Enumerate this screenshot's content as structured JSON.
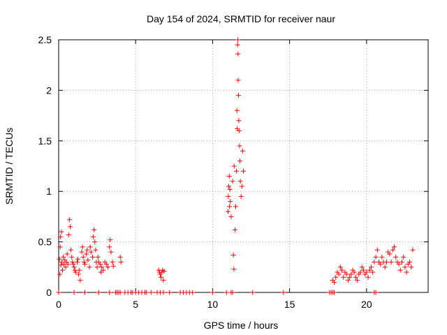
{
  "chart_data": {
    "type": "scatter",
    "title": "Day 154 of 2024, SRMTID for receiver naur",
    "xlabel": "GPS time / hours",
    "ylabel": "SRMTID / TECUs",
    "xlim": [
      0,
      24
    ],
    "ylim": [
      0,
      2.5
    ],
    "xticks": [
      0,
      5,
      10,
      15,
      20
    ],
    "xtick_labels": [
      "0",
      "5",
      "10",
      "15",
      "20"
    ],
    "yticks": [
      0,
      0.5,
      1,
      1.5,
      2,
      2.5
    ],
    "ytick_labels": [
      "0",
      "0.5",
      "1",
      "1.5",
      "2",
      "2.5"
    ],
    "grid": true,
    "marker": "+",
    "series": [
      {
        "name": "SRMTID",
        "color": "#ff0000",
        "points": [
          [
            0.05,
            0.33
          ],
          [
            0.08,
            0.18
          ],
          [
            0.1,
            0.45
          ],
          [
            0.12,
            0.55
          ],
          [
            0.15,
            0.27
          ],
          [
            0.18,
            0.6
          ],
          [
            0.2,
            0.3
          ],
          [
            0.25,
            0.22
          ],
          [
            0.3,
            0.35
          ],
          [
            0.35,
            0.28
          ],
          [
            0.4,
            0.32
          ],
          [
            0.45,
            0.25
          ],
          [
            0.5,
            0.3
          ],
          [
            0.55,
            0.38
          ],
          [
            0.6,
            0.28
          ],
          [
            0.65,
            0.57
          ],
          [
            0.7,
            0.72
          ],
          [
            0.75,
            0.65
          ],
          [
            0.8,
            0.42
          ],
          [
            0.85,
            0.35
          ],
          [
            0.9,
            0.3
          ],
          [
            0.95,
            0.28
          ],
          [
            1.0,
            0.25
          ],
          [
            1.05,
            0.22
          ],
          [
            1.1,
            0.2
          ],
          [
            1.2,
            0.3
          ],
          [
            1.25,
            0.33
          ],
          [
            1.3,
            0.18
          ],
          [
            1.35,
            0.22
          ],
          [
            1.4,
            0.12
          ],
          [
            1.5,
            0.4
          ],
          [
            1.55,
            0.45
          ],
          [
            1.6,
            0.35
          ],
          [
            1.65,
            0.3
          ],
          [
            1.7,
            0.28
          ],
          [
            1.8,
            0.38
          ],
          [
            1.85,
            0.42
          ],
          [
            1.9,
            0.32
          ],
          [
            2.0,
            0.25
          ],
          [
            2.05,
            0.45
          ],
          [
            2.1,
            0.4
          ],
          [
            2.2,
            0.35
          ],
          [
            2.25,
            0.55
          ],
          [
            2.3,
            0.62
          ],
          [
            2.35,
            0.5
          ],
          [
            2.4,
            0.42
          ],
          [
            2.45,
            0.3
          ],
          [
            2.5,
            0.25
          ],
          [
            2.55,
            0.35
          ],
          [
            2.6,
            0.3
          ],
          [
            2.7,
            0.28
          ],
          [
            2.75,
            0.2
          ],
          [
            2.8,
            0.25
          ],
          [
            2.9,
            0.22
          ],
          [
            3.0,
            0.3
          ],
          [
            3.1,
            0.28
          ],
          [
            3.2,
            0.25
          ],
          [
            3.3,
            0.45
          ],
          [
            3.35,
            0.52
          ],
          [
            3.4,
            0.4
          ],
          [
            3.5,
            0.3
          ],
          [
            3.55,
            0.26
          ],
          [
            4.0,
            0.35
          ],
          [
            4.05,
            0.3
          ],
          [
            0.0,
            0.0
          ],
          [
            1.0,
            0.0
          ],
          [
            1.7,
            0.0
          ],
          [
            2.6,
            0.0
          ],
          [
            3.3,
            0.0
          ],
          [
            3.7,
            0.0
          ],
          [
            3.8,
            0.0
          ],
          [
            3.9,
            0.0
          ],
          [
            4.0,
            0.0
          ],
          [
            4.3,
            0.0
          ],
          [
            4.5,
            0.0
          ],
          [
            4.7,
            0.0
          ],
          [
            4.8,
            0.0
          ],
          [
            5.0,
            0.0
          ],
          [
            5.2,
            0.0
          ],
          [
            5.4,
            0.0
          ],
          [
            5.6,
            0.0
          ],
          [
            5.7,
            0.0
          ],
          [
            6.0,
            0.0
          ],
          [
            6.4,
            0.0
          ],
          [
            6.6,
            0.0
          ],
          [
            6.8,
            0.0
          ],
          [
            7.2,
            0.0
          ],
          [
            7.9,
            0.0
          ],
          [
            8.1,
            0.0
          ],
          [
            8.3,
            0.0
          ],
          [
            8.5,
            0.0
          ],
          [
            8.7,
            0.0
          ],
          [
            10.0,
            0.0
          ],
          [
            10.9,
            0.0
          ],
          [
            11.2,
            0.0
          ],
          [
            11.3,
            0.0
          ],
          [
            12.6,
            0.0
          ],
          [
            14.6,
            0.0
          ],
          [
            17.6,
            0.0
          ],
          [
            17.7,
            0.0
          ],
          [
            17.8,
            0.0
          ],
          [
            17.9,
            0.0
          ],
          [
            20.5,
            0.0
          ],
          [
            20.6,
            0.0
          ],
          [
            6.5,
            0.22
          ],
          [
            6.55,
            0.2
          ],
          [
            6.6,
            0.18
          ],
          [
            6.65,
            0.15
          ],
          [
            6.7,
            0.2
          ],
          [
            6.75,
            0.22
          ],
          [
            6.8,
            0.12
          ],
          [
            6.85,
            0.21
          ],
          [
            11.0,
            0.8
          ],
          [
            11.02,
            0.95
          ],
          [
            11.05,
            1.05
          ],
          [
            11.08,
            1.15
          ],
          [
            11.1,
            0.85
          ],
          [
            11.12,
            1.02
          ],
          [
            11.15,
            0.9
          ],
          [
            11.2,
            0.75
          ],
          [
            11.3,
            1.1
          ],
          [
            11.4,
            1.25
          ],
          [
            11.45,
            0.62
          ],
          [
            11.5,
            0.85
          ],
          [
            11.55,
            1.2
          ],
          [
            11.58,
            1.8
          ],
          [
            11.6,
            1.62
          ],
          [
            11.62,
            2.45
          ],
          [
            11.64,
            2.5
          ],
          [
            11.65,
            2.36
          ],
          [
            11.66,
            2.1
          ],
          [
            11.68,
            1.95
          ],
          [
            11.7,
            1.7
          ],
          [
            11.72,
            1.6
          ],
          [
            11.75,
            1.45
          ],
          [
            11.78,
            1.3
          ],
          [
            11.8,
            1.1
          ],
          [
            11.85,
            0.95
          ],
          [
            11.9,
            1.05
          ],
          [
            11.95,
            1.4
          ],
          [
            12.0,
            1.2
          ],
          [
            11.35,
            0.37
          ],
          [
            11.38,
            0.23
          ],
          [
            17.8,
            0.12
          ],
          [
            17.9,
            0.1
          ],
          [
            18.0,
            0.15
          ],
          [
            18.1,
            0.2
          ],
          [
            18.2,
            0.18
          ],
          [
            18.3,
            0.25
          ],
          [
            18.4,
            0.22
          ],
          [
            18.5,
            0.15
          ],
          [
            18.6,
            0.2
          ],
          [
            18.7,
            0.18
          ],
          [
            18.8,
            0.12
          ],
          [
            18.9,
            0.15
          ],
          [
            19.0,
            0.18
          ],
          [
            19.1,
            0.22
          ],
          [
            19.2,
            0.2
          ],
          [
            19.3,
            0.15
          ],
          [
            19.4,
            0.12
          ],
          [
            19.5,
            0.18
          ],
          [
            19.6,
            0.2
          ],
          [
            19.7,
            0.25
          ],
          [
            19.8,
            0.22
          ],
          [
            19.9,
            0.18
          ],
          [
            20.0,
            0.2
          ],
          [
            20.1,
            0.15
          ],
          [
            20.2,
            0.22
          ],
          [
            20.3,
            0.25
          ],
          [
            20.4,
            0.2
          ],
          [
            20.5,
            0.3
          ],
          [
            20.6,
            0.35
          ],
          [
            20.7,
            0.42
          ],
          [
            20.8,
            0.3
          ],
          [
            20.9,
            0.28
          ],
          [
            21.0,
            0.35
          ],
          [
            21.1,
            0.3
          ],
          [
            21.2,
            0.25
          ],
          [
            21.3,
            0.3
          ],
          [
            21.4,
            0.4
          ],
          [
            21.5,
            0.38
          ],
          [
            21.6,
            0.3
          ],
          [
            21.7,
            0.42
          ],
          [
            21.8,
            0.45
          ],
          [
            21.9,
            0.35
          ],
          [
            22.0,
            0.3
          ],
          [
            22.1,
            0.28
          ],
          [
            22.2,
            0.22
          ],
          [
            22.3,
            0.3
          ],
          [
            22.4,
            0.35
          ],
          [
            22.5,
            0.25
          ],
          [
            22.6,
            0.2
          ],
          [
            22.7,
            0.28
          ],
          [
            22.8,
            0.3
          ],
          [
            22.9,
            0.25
          ],
          [
            23.0,
            0.42
          ]
        ]
      }
    ]
  }
}
